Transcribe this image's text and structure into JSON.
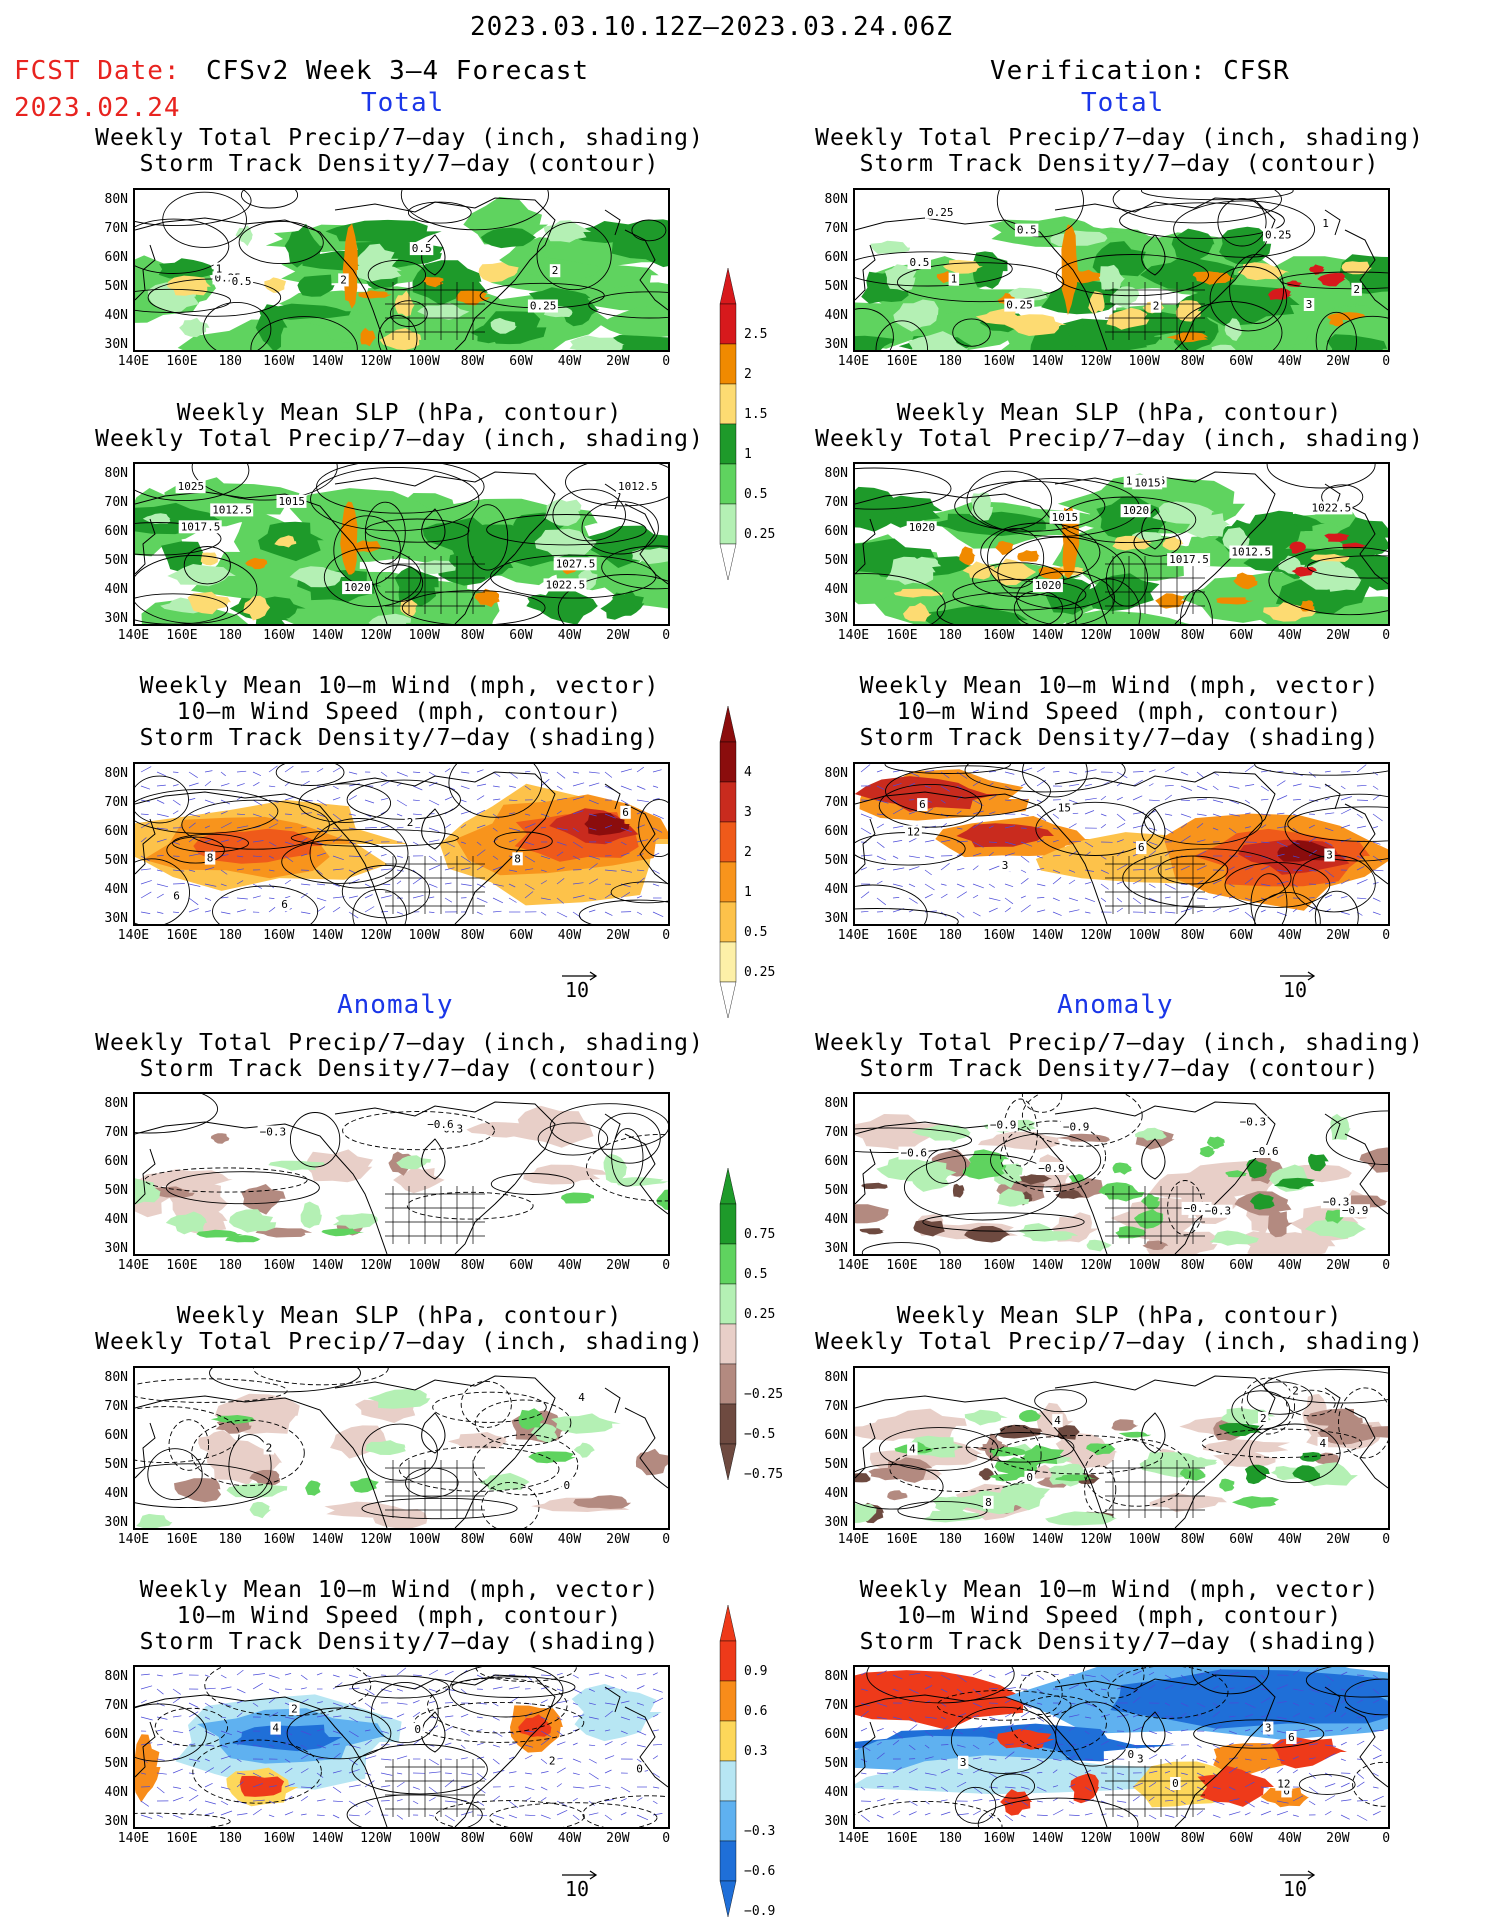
{
  "header": {
    "date_range": "2023.03.10.12Z–2023.03.24.06Z",
    "fcst_date_label": "FCST Date:",
    "fcst_date_value": "2023.02.24",
    "left_model": "CFSv2 Week 3–4 Forecast",
    "right_model": "Verification: CFSR",
    "total_label": "Total",
    "anomaly_label": "Anomaly"
  },
  "titles": {
    "precip_storm": [
      "Weekly Total Precip/7–day (inch, shading)",
      "Storm Track Density/7–day (contour)"
    ],
    "slp_precip": [
      "Weekly Mean SLP (hPa, contour)",
      "Weekly Total Precip/7–day (inch, shading)"
    ],
    "wind_storm": [
      "Weekly Mean 10–m Wind (mph, vector)",
      "10–m Wind Speed (mph, contour)",
      "Storm Track Density/7–day (shading)"
    ]
  },
  "axes": {
    "lat_labels": [
      "80N",
      "70N",
      "60N",
      "50N",
      "40N",
      "30N"
    ],
    "lon_labels": [
      "140E",
      "160E",
      "180",
      "160W",
      "140W",
      "120W",
      "100W",
      "80W",
      "60W",
      "40W",
      "20W",
      "0"
    ]
  },
  "vector_ref": "10",
  "colorbars": {
    "precip_total": {
      "labels": [
        "2.5",
        "2",
        "1.5",
        "1",
        "0.5",
        "0.25"
      ],
      "colors": [
        "#d7191c",
        "#f08a00",
        "#fddb72",
        "#1e9a2a",
        "#5fd35f",
        "#b4f0b4"
      ]
    },
    "storm_total": {
      "labels": [
        "4",
        "3",
        "2",
        "1",
        "0.5",
        "0.25"
      ],
      "colors": [
        "#8b0d0d",
        "#c92b1e",
        "#ef5a1a",
        "#f8941c",
        "#fdc24a",
        "#fdf0a8"
      ]
    },
    "precip_anom": {
      "labels": [
        "0.75",
        "0.5",
        "0.25",
        "−0.25",
        "−0.5",
        "−0.75"
      ],
      "colors": [
        "#1e9a2a",
        "#5fd35f",
        "#b4f0b4",
        "#e8cfc8",
        "#b38a80",
        "#6e4a40"
      ]
    },
    "storm_anom": {
      "labels": [
        "0.9",
        "0.6",
        "0.3",
        "−0.3",
        "−0.6",
        "−0.9"
      ],
      "colors": [
        "#ee3a1a",
        "#f88c1a",
        "#fdd75a",
        "#b7e6f3",
        "#5fb1f0",
        "#1f6fd8"
      ]
    }
  },
  "panels": {
    "l1": {
      "labels": [
        "0.25",
        "0.25",
        "0.5",
        "2",
        "2",
        "1",
        "0.5"
      ]
    },
    "r1": {
      "labels": [
        "2",
        "3",
        "0.5",
        "1",
        "0.25",
        "0.25",
        "1",
        "0.5",
        "2",
        "0.25"
      ]
    },
    "l2": {
      "labels": [
        "1025",
        "1027.5",
        "1012.5",
        "1022.5",
        "1020",
        "1012.5",
        "1015",
        "1017.5"
      ]
    },
    "r2": {
      "labels": [
        "1020",
        "1017.5",
        "1015",
        "1012.5",
        "1022.5",
        "1020",
        "1012.5",
        "1015",
        "1020"
      ]
    },
    "l3": {
      "labels": [
        "6",
        "6",
        "2",
        "8",
        "8",
        "6"
      ]
    },
    "r3": {
      "labels": [
        "3",
        "3",
        "6",
        "15",
        "12",
        "6"
      ]
    },
    "l4": {
      "labels": [
        "−0.3",
        "−0.6",
        "−0.3"
      ]
    },
    "r4": {
      "labels": [
        "−0.9",
        "−0.6",
        "−0.3",
        "−0.9",
        "−0.6",
        "−0.3",
        "−0.9",
        "−0.6",
        "−0.3",
        "−0.9"
      ]
    },
    "l5": {
      "labels": [
        "2",
        "4",
        "0"
      ]
    },
    "r5": {
      "labels": [
        "4",
        "2",
        "0",
        "8",
        "4",
        "2",
        "4"
      ]
    },
    "l6": {
      "labels": [
        "0",
        "2",
        "0",
        "2",
        "4"
      ]
    },
    "r6": {
      "labels": [
        "3",
        "0",
        "3",
        "6",
        "0",
        "6",
        "12",
        "3"
      ]
    }
  }
}
